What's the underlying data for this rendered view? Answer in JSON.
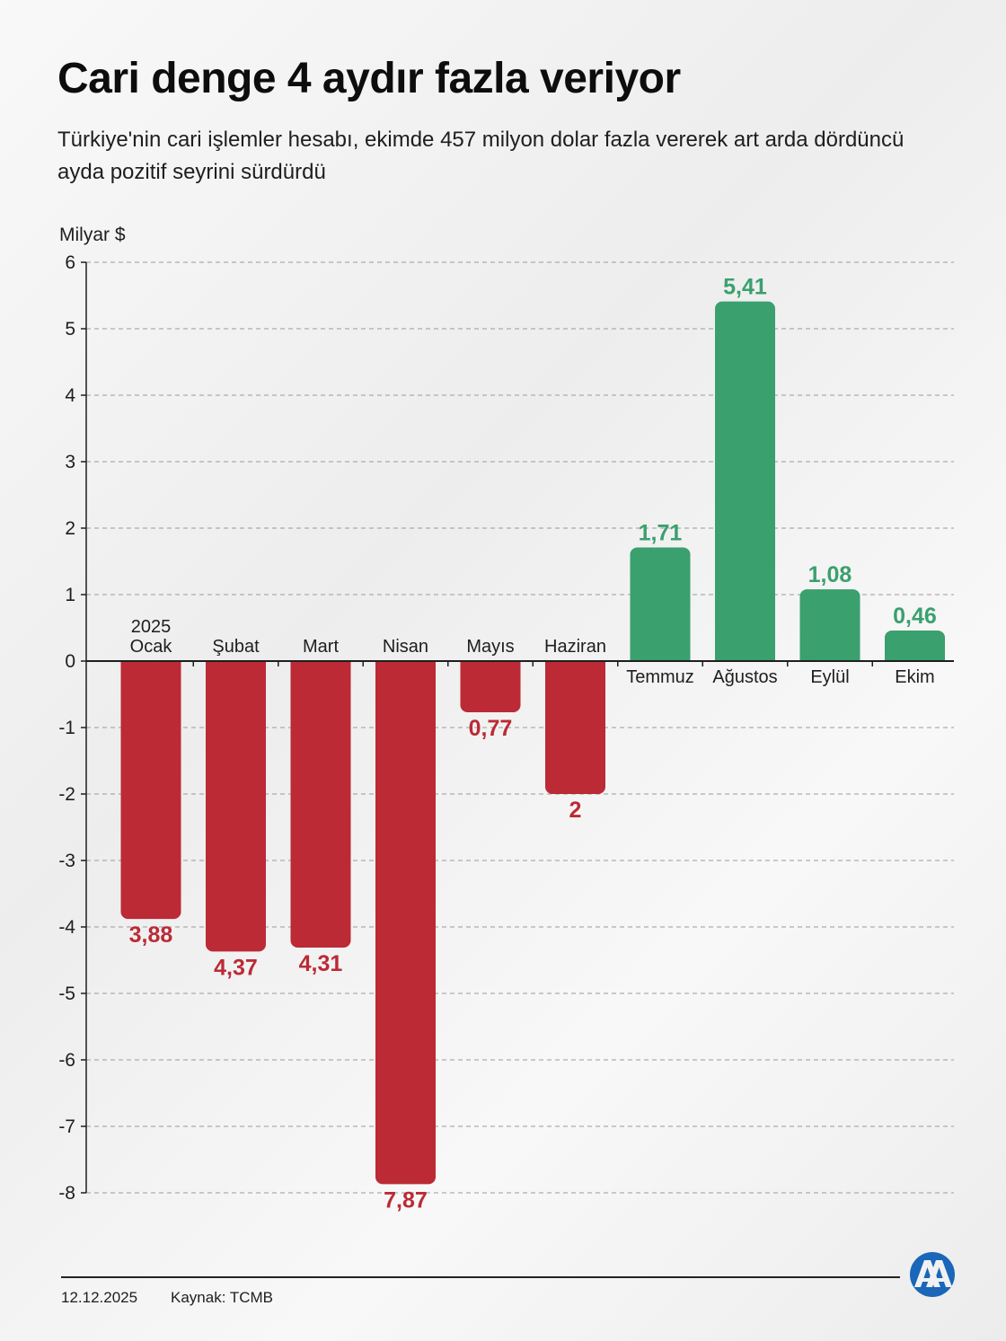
{
  "header": {
    "title": "Cari denge 4 aydır fazla veriyor",
    "subtitle": "Türkiye'nin cari işlemler hesabı, ekimde 457 milyon dolar fazla vererek art arda dördüncü ayda pozitif seyrini sürdürdü"
  },
  "colors": {
    "negative": "#bb2a35",
    "positive": "#3aa06e",
    "grid": "#9a9a9a",
    "axis": "#1e1e1e"
  },
  "chart_data": {
    "type": "bar",
    "title": "Cari denge 4 aydır fazla veriyor",
    "ylabel": "Milyar $",
    "xlabel": "",
    "ylim": [
      -8,
      6
    ],
    "yticks": [
      6,
      5,
      4,
      3,
      2,
      1,
      0,
      -1,
      -2,
      -3,
      -4,
      -5,
      -6,
      -7,
      -8
    ],
    "grid": true,
    "categories": [
      "Ocak",
      "Şubat",
      "Mart",
      "Nisan",
      "Mayıs",
      "Haziran",
      "Temmuz",
      "Ağustos",
      "Eylül",
      "Ekim"
    ],
    "year_label": "2025",
    "values": [
      -3.88,
      -4.37,
      -4.31,
      -7.87,
      -0.77,
      -2,
      1.71,
      5.41,
      1.08,
      0.46
    ],
    "value_labels": [
      "3,88",
      "4,37",
      "4,31",
      "7,87",
      "0,77",
      "2",
      "1,71",
      "5,41",
      "1,08",
      "0,46"
    ]
  },
  "footer": {
    "date": "12.12.2025",
    "source": "Kaynak: TCMB",
    "logo": "AA"
  }
}
